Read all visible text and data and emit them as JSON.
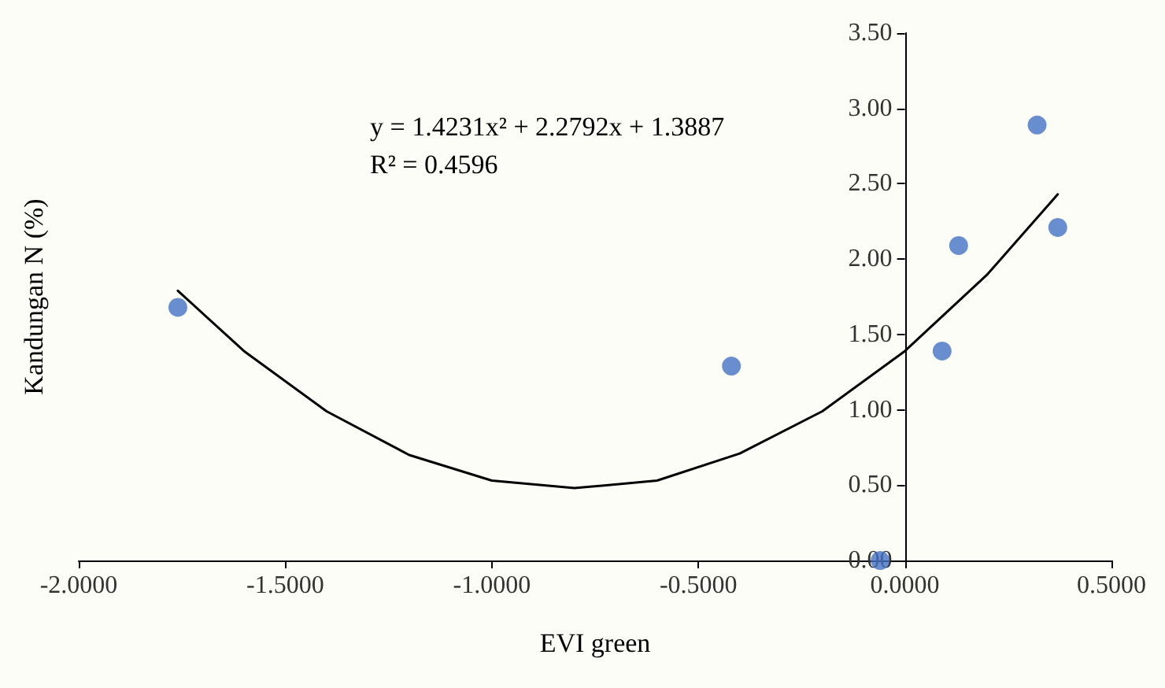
{
  "chart_data": {
    "type": "scatter",
    "xlabel": "EVI green",
    "ylabel": "Kandungan N (%)",
    "annotations": [
      "y = 1.4231x² + 2.2792x + 1.3887",
      "R² = 0.4596"
    ],
    "series": [
      {
        "type": "scatter",
        "color": "#4472c4",
        "marker": "circle",
        "x": [
          -1.76,
          -0.42,
          -0.06,
          0.09,
          0.13,
          0.32,
          0.37
        ],
        "values": [
          1.68,
          1.29,
          0.0,
          1.39,
          2.09,
          2.89,
          2.21
        ]
      },
      {
        "type": "line",
        "color": "#000000",
        "marker": "none",
        "x": [
          -1.76,
          -1.6,
          -1.4,
          -1.2,
          -1.0,
          -0.8,
          -0.6,
          -0.4,
          -0.2,
          0,
          0.2,
          0.37
        ],
        "values": [
          1.79,
          1.39,
          0.99,
          0.7,
          0.53,
          0.48,
          0.53,
          0.71,
          0.99,
          1.39,
          1.9,
          2.43
        ]
      }
    ],
    "xlim": [
      -2,
      0.5
    ],
    "xticks": [
      {
        "value": -2,
        "label": "-2.0000"
      },
      {
        "value": -1.5,
        "label": "-1.5000"
      },
      {
        "value": -1,
        "label": "-1.0000"
      },
      {
        "value": -0.5,
        "label": "-0.5000"
      },
      {
        "value": 0,
        "label": "0.0000"
      },
      {
        "value": 0.5,
        "label": "0.5000"
      }
    ],
    "ylim": [
      0,
      3.5
    ],
    "yticks": [
      {
        "value": 0,
        "label": "0.00"
      },
      {
        "value": 0.5,
        "label": "0.50"
      },
      {
        "value": 1,
        "label": "1.00"
      },
      {
        "value": 1.5,
        "label": "1.50"
      },
      {
        "value": 2,
        "label": "2.00"
      },
      {
        "value": 2.5,
        "label": "2.50"
      },
      {
        "value": 3,
        "label": "3.00"
      },
      {
        "value": 3.5,
        "label": "3.50"
      }
    ],
    "grid": false
  }
}
